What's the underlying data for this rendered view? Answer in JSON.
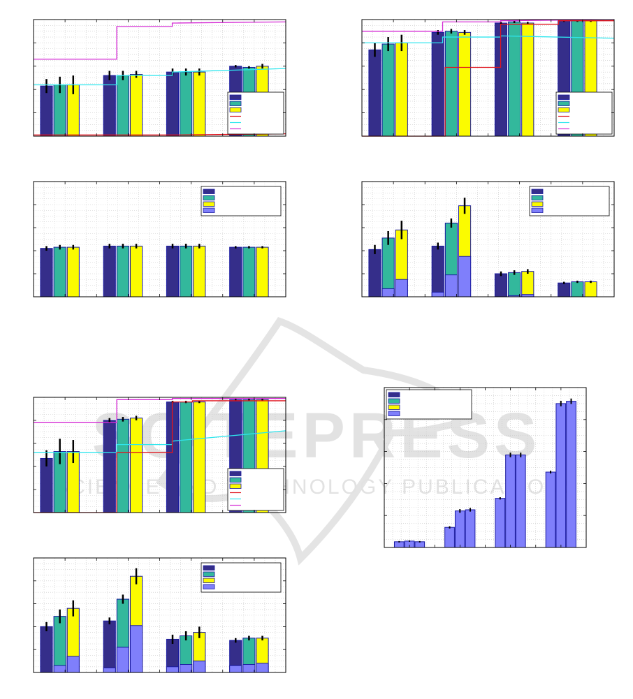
{
  "colors": {
    "bar_a": "#352e8a",
    "bar_b": "#33b89c",
    "bar_c": "#fbfb00",
    "bar_d": "#7f7ffb",
    "line_red": "#e0151e",
    "line_cyan": "#2ee6ee",
    "line_magenta": "#d42ad4",
    "grid": "#c8c8c8",
    "watermark": "#dcdcdc"
  },
  "watermark": {
    "line1": "SCITEPRESS",
    "line2": "SCIENCE AND TECHNOLOGY PUBLICATIONS"
  },
  "chart_data": [
    {
      "id": "top-left",
      "type": "bar",
      "groups": 4,
      "ylim": [
        0,
        1
      ],
      "legend_position": "bottom-right",
      "legend_rows": [
        "box:bar_a",
        "box:bar_b",
        "box:bar_c",
        "line:line_red",
        "line:line_cyan",
        "line:line_magenta"
      ],
      "series": [
        {
          "color": "bar_a",
          "values": [
            0.43,
            0.52,
            0.55,
            0.6
          ],
          "errors": [
            0.06,
            0.04,
            0.03,
            0.01
          ]
        },
        {
          "color": "bar_b",
          "values": [
            0.44,
            0.52,
            0.55,
            0.59
          ],
          "errors": [
            0.07,
            0.04,
            0.03,
            0.01
          ]
        },
        {
          "color": "bar_c",
          "values": [
            0.44,
            0.53,
            0.55,
            0.6
          ],
          "errors": [
            0.08,
            0.03,
            0.03,
            0.02
          ]
        },
        {
          "color": "bar_d",
          "values": [
            0,
            0,
            0,
            0
          ],
          "errors": [
            0,
            0,
            0,
            0
          ]
        }
      ],
      "steps": [
        {
          "color": "line_magenta",
          "x": [
            0,
            0.33,
            0.33,
            0.55,
            0.55,
            1
          ],
          "y": [
            0.66,
            0.66,
            0.94,
            0.94,
            0.97,
            0.98
          ]
        },
        {
          "color": "line_cyan",
          "x": [
            0,
            0.33,
            0.33,
            0.55,
            0.55,
            1
          ],
          "y": [
            0.44,
            0.44,
            0.52,
            0.52,
            0.55,
            0.58
          ]
        },
        {
          "color": "line_red",
          "x": [
            0,
            0.55,
            0.55,
            1
          ],
          "y": [
            0.01,
            0.01,
            0.01,
            0.02
          ]
        }
      ]
    },
    {
      "id": "top-right",
      "type": "bar",
      "groups": 4,
      "ylim": [
        0,
        1
      ],
      "legend_position": "bottom-right",
      "legend_rows": [
        "box:bar_a",
        "box:bar_b",
        "box:bar_c",
        "line:line_red",
        "line:line_cyan",
        "line:line_magenta"
      ],
      "series": [
        {
          "color": "bar_a",
          "values": [
            0.74,
            0.89,
            0.97,
            0.99
          ],
          "errors": [
            0.06,
            0.02,
            0.01,
            0.01
          ]
        },
        {
          "color": "bar_b",
          "values": [
            0.79,
            0.9,
            0.98,
            0.99
          ],
          "errors": [
            0.06,
            0.02,
            0.01,
            0.01
          ]
        },
        {
          "color": "bar_c",
          "values": [
            0.8,
            0.89,
            0.97,
            0.99
          ],
          "errors": [
            0.07,
            0.02,
            0.01,
            0.01
          ]
        },
        {
          "color": "bar_d",
          "values": [
            0,
            0,
            0,
            0
          ],
          "errors": [
            0,
            0,
            0,
            0
          ]
        }
      ],
      "steps": [
        {
          "color": "line_magenta",
          "x": [
            0,
            0.32,
            0.32,
            0.55,
            0.55,
            1
          ],
          "y": [
            0.9,
            0.9,
            0.98,
            0.98,
            0.99,
            1.0
          ]
        },
        {
          "color": "line_cyan",
          "x": [
            0,
            0.32,
            0.32,
            0.55,
            0.55,
            1
          ],
          "y": [
            0.8,
            0.8,
            0.85,
            0.85,
            0.86,
            0.84
          ]
        },
        {
          "color": "line_red",
          "x": [
            0,
            0.33,
            0.33,
            0.55,
            0.55,
            0.78,
            0.78,
            1
          ],
          "y": [
            0.0,
            0.0,
            0.59,
            0.59,
            0.96,
            0.96,
            0.99,
            0.99
          ]
        }
      ]
    },
    {
      "id": "middle-left",
      "type": "bar",
      "groups": 4,
      "ylim": [
        0,
        1
      ],
      "legend_position": "top-right",
      "legend_rows": [
        "box:bar_a",
        "box:bar_b",
        "box:bar_c",
        "box:bar_d"
      ],
      "series": [
        {
          "color": "bar_a",
          "values": [
            0.42,
            0.44,
            0.44,
            0.43
          ],
          "errors": [
            0.02,
            0.02,
            0.02,
            0.01
          ]
        },
        {
          "color": "bar_b",
          "values": [
            0.43,
            0.44,
            0.44,
            0.43
          ],
          "errors": [
            0.02,
            0.02,
            0.02,
            0.01
          ]
        },
        {
          "color": "bar_c",
          "values": [
            0.43,
            0.44,
            0.44,
            0.43
          ],
          "errors": [
            0.02,
            0.02,
            0.02,
            0.01
          ]
        },
        {
          "color": "bar_d",
          "values": [
            0,
            0,
            0,
            0
          ],
          "errors": [
            0,
            0,
            0,
            0
          ]
        }
      ],
      "steps": []
    },
    {
      "id": "middle-right",
      "type": "bar",
      "groups": 4,
      "ylim": [
        0,
        1
      ],
      "legend_position": "top-right",
      "legend_rows": [
        "box:bar_a",
        "box:bar_b",
        "box:bar_c",
        "box:bar_d"
      ],
      "series": [
        {
          "color": "bar_a",
          "values": [
            0.41,
            0.44,
            0.2,
            0.12
          ],
          "errors": [
            0.04,
            0.03,
            0.02,
            0.01
          ]
        },
        {
          "color": "bar_b",
          "values": [
            0.51,
            0.64,
            0.21,
            0.13
          ],
          "errors": [
            0.06,
            0.04,
            0.02,
            0.01
          ]
        },
        {
          "color": "bar_c",
          "values": [
            0.58,
            0.79,
            0.22,
            0.13
          ],
          "errors": [
            0.08,
            0.07,
            0.02,
            0.01
          ]
        },
        {
          "color": "bar_d",
          "values": [
            0.0,
            0.04,
            0.01,
            0.0
          ],
          "errors": [
            0,
            0,
            0,
            0
          ]
        }
      ],
      "stacked": [
        {
          "color": "bar_d",
          "values": [
            0.0,
            0.04,
            0.0,
            0.0
          ]
        },
        {
          "color": "bar_d",
          "values": [
            0.07,
            0.19,
            0.01,
            0.0
          ]
        },
        {
          "color": "bar_d",
          "values": [
            0.15,
            0.35,
            0.02,
            0.0
          ]
        }
      ],
      "steps": []
    },
    {
      "id": "lower-left",
      "type": "bar",
      "groups": 4,
      "ylim": [
        0,
        1
      ],
      "legend_position": "bottom-right",
      "legend_rows": [
        "box:bar_a",
        "box:bar_b",
        "box:bar_c",
        "line:line_red",
        "line:line_cyan",
        "line:line_magenta"
      ],
      "series": [
        {
          "color": "bar_a",
          "values": [
            0.47,
            0.8,
            0.96,
            0.98
          ],
          "errors": [
            0.07,
            0.02,
            0.01,
            0.01
          ]
        },
        {
          "color": "bar_b",
          "values": [
            0.53,
            0.81,
            0.96,
            0.98
          ],
          "errors": [
            0.11,
            0.02,
            0.01,
            0.01
          ]
        },
        {
          "color": "bar_c",
          "values": [
            0.53,
            0.82,
            0.96,
            0.98
          ],
          "errors": [
            0.1,
            0.02,
            0.01,
            0.01
          ]
        },
        {
          "color": "bar_d",
          "values": [
            0,
            0,
            0,
            0
          ],
          "errors": [
            0,
            0,
            0,
            0
          ]
        }
      ],
      "steps": [
        {
          "color": "line_magenta",
          "x": [
            0,
            0.33,
            0.33,
            0.55,
            0.55,
            1
          ],
          "y": [
            0.78,
            0.78,
            0.98,
            0.98,
            0.99,
            0.99
          ]
        },
        {
          "color": "line_cyan",
          "x": [
            0,
            0.33,
            0.33,
            0.55,
            0.55,
            1
          ],
          "y": [
            0.52,
            0.52,
            0.59,
            0.59,
            0.62,
            0.71
          ]
        },
        {
          "color": "line_red",
          "x": [
            0,
            0.33,
            0.33,
            0.55,
            0.55,
            0.63,
            0.63,
            1
          ],
          "y": [
            0.0,
            0.0,
            0.52,
            0.52,
            0.96,
            0.96,
            0.97,
            0.97
          ]
        }
      ]
    },
    {
      "id": "bottom-left",
      "type": "bar",
      "groups": 4,
      "ylim": [
        0,
        1
      ],
      "legend_position": "top-right",
      "legend_rows": [
        "box:bar_a",
        "box:bar_b",
        "box:bar_c",
        "box:bar_d"
      ],
      "series": [
        {
          "color": "bar_a",
          "values": [
            0.4,
            0.45,
            0.29,
            0.28
          ],
          "errors": [
            0.04,
            0.03,
            0.04,
            0.02
          ]
        },
        {
          "color": "bar_b",
          "values": [
            0.49,
            0.64,
            0.32,
            0.3
          ],
          "errors": [
            0.06,
            0.04,
            0.04,
            0.02
          ]
        },
        {
          "color": "bar_c",
          "values": [
            0.56,
            0.84,
            0.35,
            0.3
          ],
          "errors": [
            0.07,
            0.07,
            0.05,
            0.02
          ]
        },
        {
          "color": "bar_d",
          "values": [
            0,
            0,
            0,
            0
          ],
          "errors": [
            0,
            0,
            0,
            0
          ]
        }
      ],
      "stacked": [
        {
          "color": "bar_d",
          "values": [
            0.0,
            0.04,
            0.05,
            0.06
          ]
        },
        {
          "color": "bar_d",
          "values": [
            0.06,
            0.22,
            0.07,
            0.07
          ]
        },
        {
          "color": "bar_d",
          "values": [
            0.14,
            0.41,
            0.1,
            0.08
          ]
        }
      ],
      "steps": []
    },
    {
      "id": "bottom-right",
      "type": "bar",
      "groups": 4,
      "ylim": [
        0,
        7
      ],
      "legend_position": "top-left",
      "legend_rows": [
        "box:bar_a",
        "box:bar_b",
        "box:bar_c",
        "box:bar_d"
      ],
      "series": [
        {
          "color": "bar_d",
          "values": [
            0.25,
            0.28,
            0.25,
            0.0
          ],
          "errors": [
            0.03,
            0.03,
            0.03,
            0
          ]
        },
        {
          "color": "bar_d",
          "values": [
            0.88,
            1.6,
            1.65,
            0.0
          ],
          "errors": [
            0.05,
            0.08,
            0.08,
            0
          ]
        },
        {
          "color": "bar_d",
          "values": [
            2.15,
            4.05,
            4.05,
            0.0
          ],
          "errors": [
            0.05,
            0.1,
            0.1,
            0
          ]
        },
        {
          "color": "bar_d",
          "values": [
            3.3,
            6.3,
            6.4,
            0.0
          ],
          "errors": [
            0.06,
            0.12,
            0.12,
            0
          ]
        }
      ],
      "layout": "grouped-by-row",
      "steps": []
    }
  ]
}
